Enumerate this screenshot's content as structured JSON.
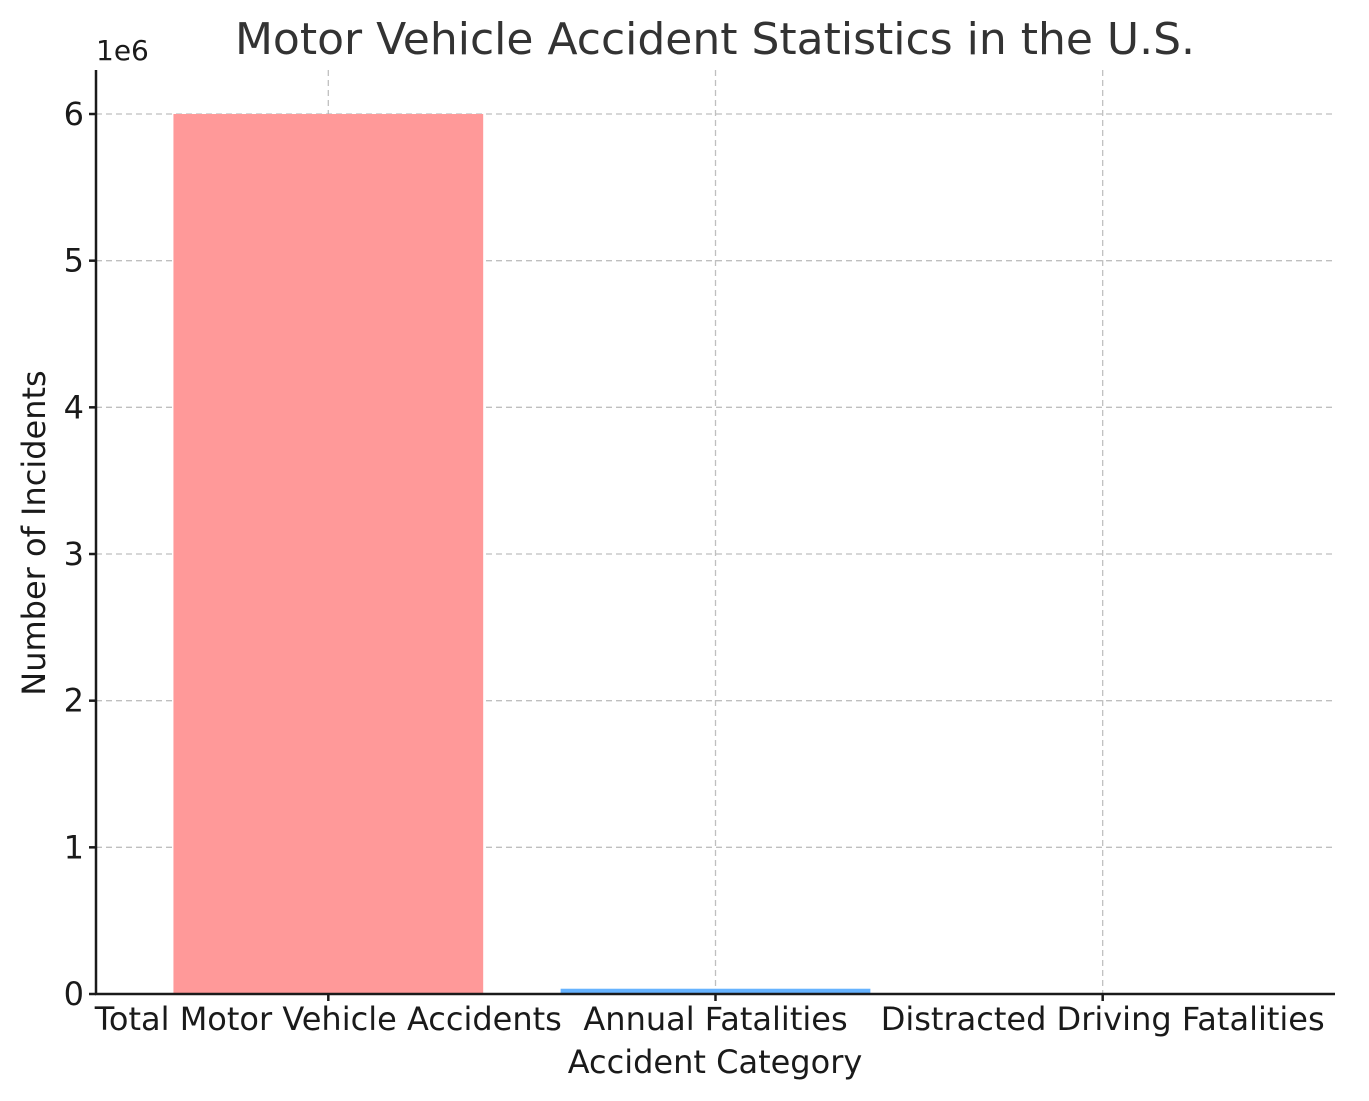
{
  "chart_data": {
    "type": "bar",
    "title": "Motor Vehicle Accident Statistics in the U.S.",
    "xlabel": "Accident Category",
    "ylabel": "Number of Incidents",
    "y_offset_label": "1e6",
    "categories": [
      "Total Motor Vehicle Accidents",
      "Annual Fatalities",
      "Distracted Driving Fatalities"
    ],
    "values": [
      6000000,
      36000,
      3000
    ],
    "colors": [
      "#ff9999",
      "#66b3ff",
      "#99ff99"
    ],
    "ylim": [
      0,
      6300000
    ],
    "yticks": [
      0,
      1000000,
      2000000,
      3000000,
      4000000,
      5000000,
      6000000
    ],
    "ytick_labels": [
      "0",
      "1",
      "2",
      "3",
      "4",
      "5",
      "6"
    ],
    "grid": true
  }
}
